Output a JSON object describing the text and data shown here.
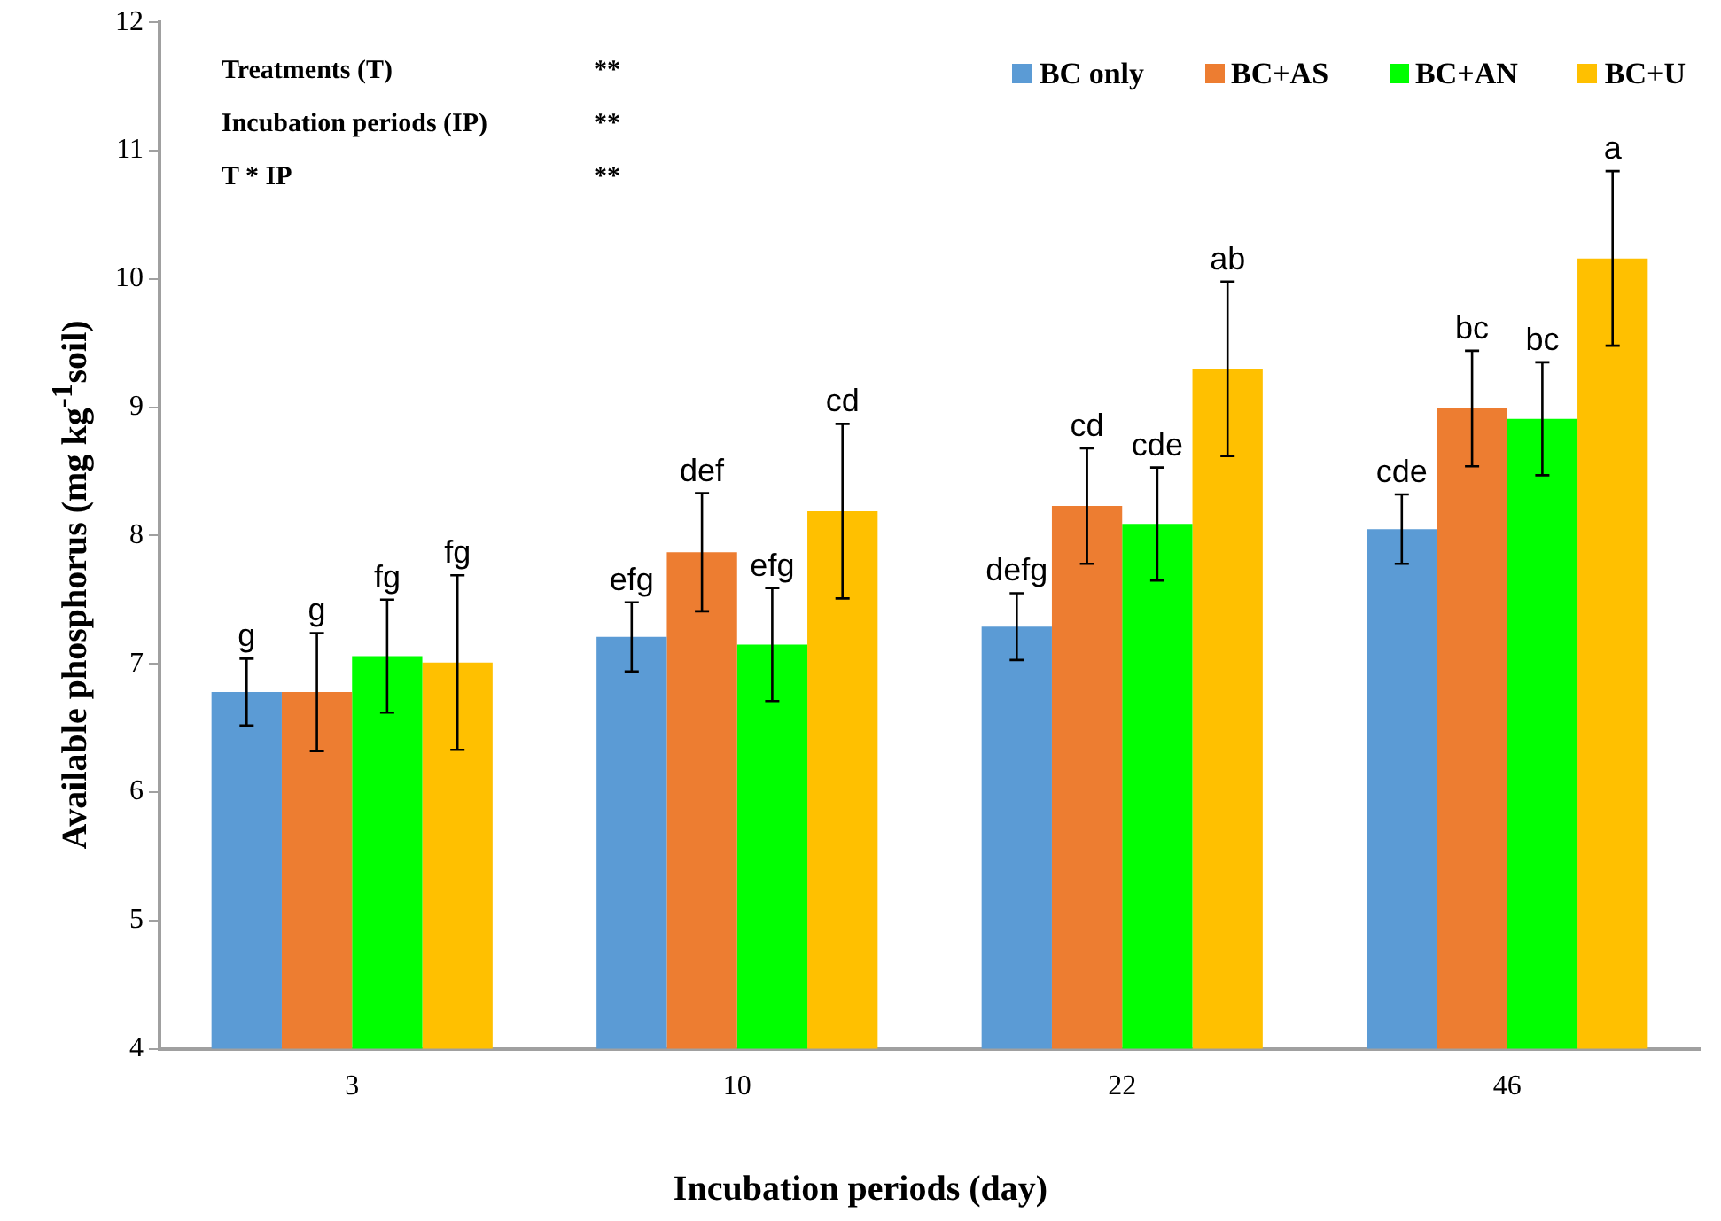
{
  "chart_data": {
    "type": "bar",
    "xlabel": "Incubation periods (day)",
    "ylabel": "Available phosphorus (mg kg$^{-1}$soil)",
    "categories": [
      "3",
      "10",
      "22",
      "46"
    ],
    "series": [
      {
        "name": "BC only",
        "color": "#5b9bd5",
        "values": [
          6.78,
          7.21,
          7.29,
          8.05
        ],
        "errors": [
          0.26,
          0.27,
          0.26,
          0.27
        ],
        "value_labels": [
          "g",
          "efg",
          "defg",
          "cde"
        ]
      },
      {
        "name": "BC+AS",
        "color": "#ed7d31",
        "values": [
          6.78,
          7.87,
          8.23,
          8.99
        ],
        "errors": [
          0.46,
          0.46,
          0.45,
          0.45
        ],
        "value_labels": [
          "g",
          "def",
          "cd",
          "bc"
        ]
      },
      {
        "name": "BC+AN",
        "color": "#00ff00",
        "values": [
          7.06,
          7.15,
          8.09,
          8.91
        ],
        "errors": [
          0.44,
          0.44,
          0.44,
          0.44
        ],
        "value_labels": [
          "fg",
          "efg",
          "cde",
          "bc"
        ]
      },
      {
        "name": "BC+U",
        "color": "#ffc000",
        "values": [
          7.01,
          8.19,
          9.3,
          10.16
        ],
        "errors": [
          0.68,
          0.68,
          0.68,
          0.68
        ],
        "value_labels": [
          "fg",
          "cd",
          "ab",
          "a"
        ]
      }
    ],
    "ylim": [
      4,
      12
    ],
    "yticks": [
      4,
      5,
      6,
      7,
      8,
      9,
      10,
      11,
      12
    ],
    "grid": false,
    "legend": "top right",
    "annotations": [
      "Treatments (T)",
      "**",
      "Incubation periods (IP)",
      "**",
      "T * IP",
      "**"
    ]
  }
}
